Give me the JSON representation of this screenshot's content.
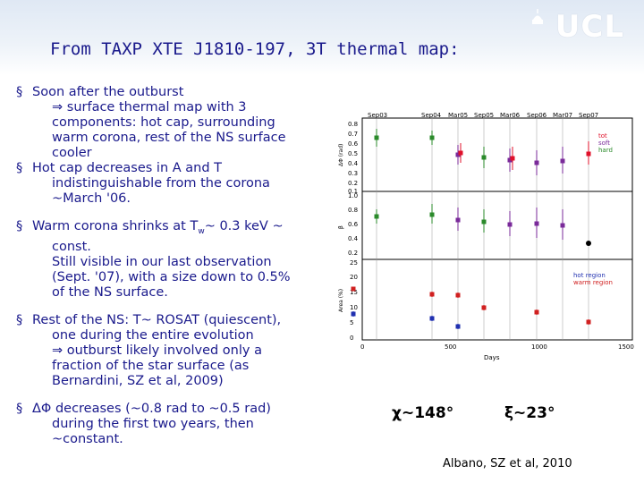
{
  "header": {
    "logo_text": "UCL",
    "title": "From TAXP XTE J1810-197, 3T thermal map:"
  },
  "bullets": [
    {
      "marker": "§",
      "lines": [
        "Soon after the outburst",
        "⇒ surface thermal map with 3",
        "components: hot cap, surrounding",
        "warm corona, rest of the NS surface",
        "cooler"
      ]
    },
    {
      "marker": "§",
      "lines": [
        "Hot cap decreases in A and T",
        "indistinguishable from the corona",
        "~March '06."
      ]
    },
    {
      "marker": "§",
      "lines": [
        "Warm corona shrinks at T",
        "const.",
        "Still visible in our last observation",
        "(Sept. '07), with a size down to 0.5%",
        "of the NS surface."
      ],
      "sub_w": "w",
      "after_sub": "~ 0.3 keV ~"
    },
    {
      "marker": "§",
      "lines": [
        "Rest of the NS: T~ ROSAT (quiescent),",
        "one during the entire evolution",
        "⇒ outburst likely involved only a",
        "fraction of the star surface (as",
        "Bernardini, SZ et al, 2009)"
      ]
    },
    {
      "marker": "§",
      "lines": [
        "ΔΦ decreases (~0.8 rad to ~0.5 rad)",
        "during the first two years, then",
        "~constant."
      ]
    }
  ],
  "figure": {
    "epochs": [
      "Sep03",
      "Sep04",
      "Mar05",
      "Sep05",
      "Mar06",
      "Sep06",
      "Mar07",
      "Sep07"
    ],
    "panel1": {
      "ylabel": "ΔΦ (rad)",
      "ticks": [
        "0.8",
        "0.7",
        "0.6",
        "0.5",
        "0.4",
        "0.3",
        "0.2",
        "0.1"
      ],
      "legend": [
        {
          "label": "tot",
          "color": "#e0102a"
        },
        {
          "label": "soft",
          "color": "#7a2a9a"
        },
        {
          "label": "hard",
          "color": "#2a8a2a"
        }
      ]
    },
    "panel2": {
      "ylabel": "β",
      "ticks": [
        "1.0",
        "0.8",
        "0.6",
        "0.4",
        "0.2"
      ]
    },
    "panel3": {
      "ylabel": "Area (%)",
      "ticks": [
        "25",
        "20",
        "15",
        "10",
        "5",
        "0"
      ],
      "legend": [
        {
          "label": "hot region",
          "color": "#2030b0"
        },
        {
          "label": "warm region",
          "color": "#d02020"
        }
      ]
    },
    "xaxis": {
      "label": "Days",
      "ticks": [
        "0",
        "500",
        "1000",
        "1500"
      ]
    }
  },
  "stats": {
    "chi": "χ~148°",
    "xi": "ξ~23°"
  },
  "citation": "Albano, SZ et al, 2010",
  "colors": {
    "title": "#1a1a8c",
    "bullet_text": "#1a1a8c",
    "header_bg": "#dfe8f4"
  }
}
